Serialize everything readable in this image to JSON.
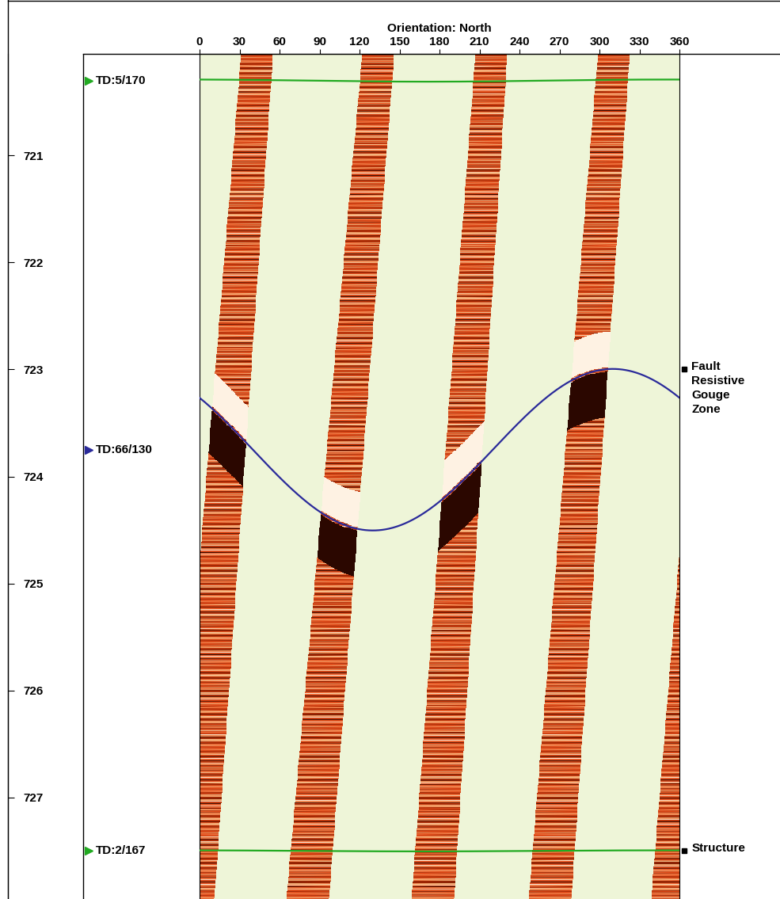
{
  "chart_data": {
    "type": "image_log",
    "x_label": "Orientation: North",
    "xlim": [
      0,
      360
    ],
    "xticks": [
      0,
      30,
      60,
      90,
      120,
      150,
      180,
      210,
      240,
      270,
      300,
      330,
      360
    ],
    "ylim": [
      727.95,
      720.05
    ],
    "yticks": [
      721,
      722,
      723,
      724,
      725,
      726,
      727
    ],
    "pads": {
      "top_azimuths": [
        43,
        134,
        219,
        311
      ],
      "bottom_azimuths": [
        355,
        81,
        175,
        263
      ],
      "top_width": 24,
      "bottom_width": 32
    },
    "features": [
      {
        "label": "TD:5/170",
        "depth": 720.3,
        "azimuth": 170,
        "amplitude": 0.01,
        "color": "#22aa22"
      },
      {
        "label": "TD:66/130",
        "depth": 723.75,
        "azimuth": 130,
        "amplitude": 0.755,
        "color": "#2a2a9a",
        "annotation": "Fault\nResistive\nGouge\nZone"
      },
      {
        "label": "TD:2/167",
        "depth": 727.5,
        "azimuth": 167,
        "amplitude": 0.005,
        "color": "#22aa22",
        "annotation": "Structure"
      }
    ]
  }
}
